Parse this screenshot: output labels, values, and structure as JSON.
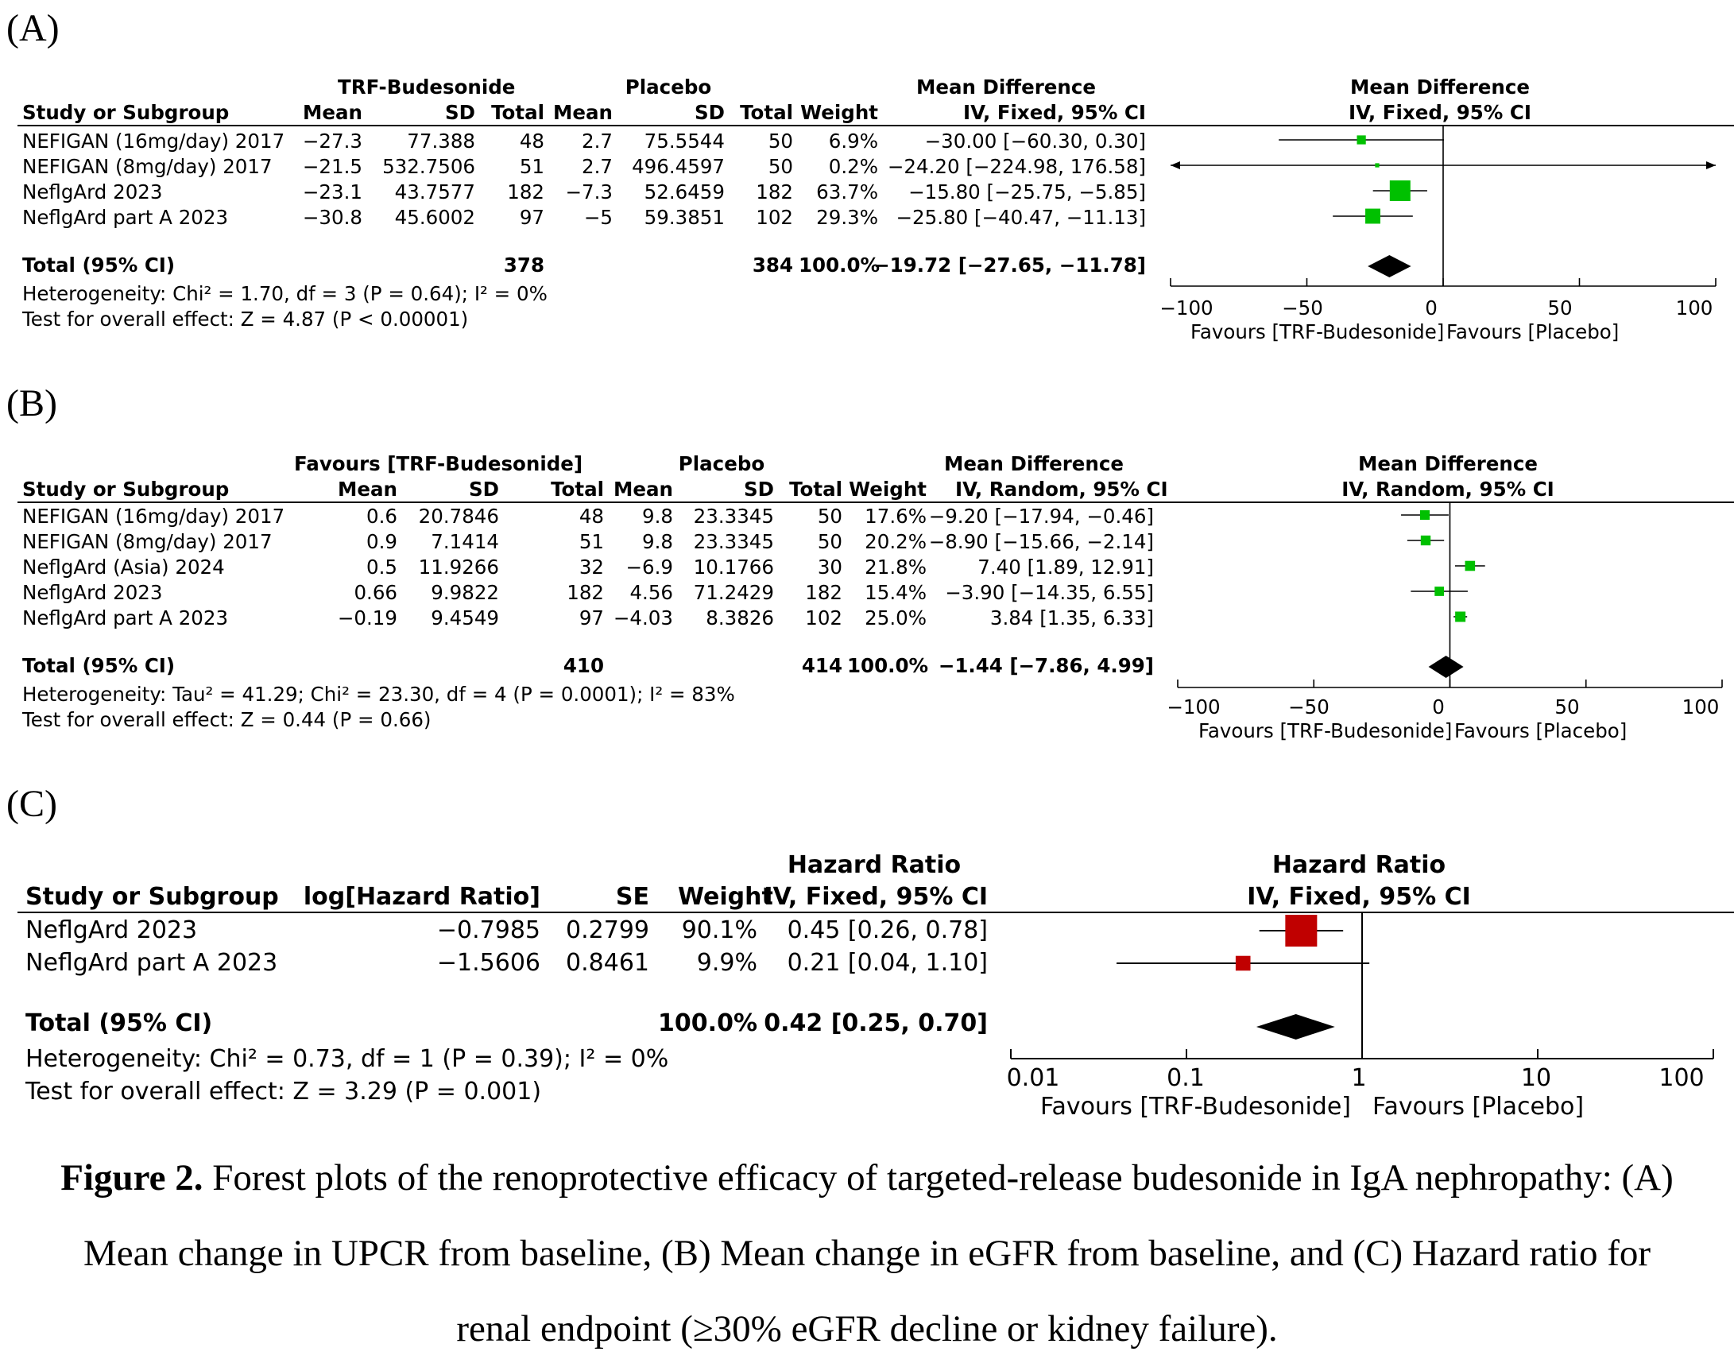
{
  "panels": [
    {
      "label": "(A)",
      "group1_label": "TRF-Budesonide",
      "group2_label": "Placebo",
      "effect_label": "Mean Difference",
      "method": "IV, Fixed, 95% CI",
      "columns": {
        "study": "Study or Subgroup",
        "mean1": "Mean",
        "sd1": "SD",
        "total1": "Total",
        "mean2": "Mean",
        "sd2": "SD",
        "total2": "Total",
        "weight": "Weight"
      },
      "studies": [
        {
          "name": "NEFIGAN (16mg/day) 2017",
          "mean1": "−27.3",
          "sd1": "77.388",
          "total1": "48",
          "mean2": "2.7",
          "sd2": "75.5544",
          "total2": "50",
          "weight": "6.9%",
          "ci": "−30.00 [−60.30, 0.30]"
        },
        {
          "name": "NEFIGAN (8mg/day) 2017",
          "mean1": "−21.5",
          "sd1": "532.7506",
          "total1": "51",
          "mean2": "2.7",
          "sd2": "496.4597",
          "total2": "50",
          "weight": "0.2%",
          "ci": "−24.20 [−224.98, 176.58]"
        },
        {
          "name": "NeflgArd 2023",
          "mean1": "−23.1",
          "sd1": "43.7577",
          "total1": "182",
          "mean2": "−7.3",
          "sd2": "52.6459",
          "total2": "182",
          "weight": "63.7%",
          "ci": "−15.80 [−25.75, −5.85]"
        },
        {
          "name": "NeflgArd part A 2023",
          "mean1": "−30.8",
          "sd1": "45.6002",
          "total1": "97",
          "mean2": "−5",
          "sd2": "59.3851",
          "total2": "102",
          "weight": "29.3%",
          "ci": "−25.80 [−40.47, −11.13]"
        }
      ],
      "total": {
        "name": "Total (95% CI)",
        "total1": "378",
        "total2": "384",
        "weight": "100.0%",
        "ci": "−19.72 [−27.65, −11.78]"
      },
      "heterogeneity": "Heterogeneity: Chi² = 1.70, df = 3 (P = 0.64); I² = 0%",
      "overall_effect": "Test for overall effect: Z = 4.87 (P < 0.00001)",
      "axis": {
        "ticks": [
          "−100",
          "−50",
          "0",
          "50",
          "100"
        ],
        "favours_left": "Favours [TRF-Budesonide]",
        "favours_right": "Favours [Placebo]"
      }
    },
    {
      "label": "(B)",
      "group1_label": "Favours [TRF-Budesonide]",
      "group2_label": "Placebo",
      "effect_label": "Mean Difference",
      "method": "IV, Random, 95% CI",
      "columns": {
        "study": "Study or Subgroup",
        "mean1": "Mean",
        "sd1": "SD",
        "total1": "Total",
        "mean2": "Mean",
        "sd2": "SD",
        "total2": "Total",
        "weight": "Weight"
      },
      "studies": [
        {
          "name": "NEFIGAN (16mg/day) 2017",
          "mean1": "0.6",
          "sd1": "20.7846",
          "total1": "48",
          "mean2": "9.8",
          "sd2": "23.3345",
          "total2": "50",
          "weight": "17.6%",
          "ci": "−9.20 [−17.94, −0.46]"
        },
        {
          "name": "NEFIGAN (8mg/day) 2017",
          "mean1": "0.9",
          "sd1": "7.1414",
          "total1": "51",
          "mean2": "9.8",
          "sd2": "23.3345",
          "total2": "50",
          "weight": "20.2%",
          "ci": "−8.90 [−15.66, −2.14]"
        },
        {
          "name": "NeflgArd (Asia) 2024",
          "mean1": "0.5",
          "sd1": "11.9266",
          "total1": "32",
          "mean2": "−6.9",
          "sd2": "10.1766",
          "total2": "30",
          "weight": "21.8%",
          "ci": "7.40 [1.89, 12.91]"
        },
        {
          "name": "NeflgArd 2023",
          "mean1": "0.66",
          "sd1": "9.9822",
          "total1": "182",
          "mean2": "4.56",
          "sd2": "71.2429",
          "total2": "182",
          "weight": "15.4%",
          "ci": "−3.90 [−14.35, 6.55]"
        },
        {
          "name": "NeflgArd part A 2023",
          "mean1": "−0.19",
          "sd1": "9.4549",
          "total1": "97",
          "mean2": "−4.03",
          "sd2": "8.3826",
          "total2": "102",
          "weight": "25.0%",
          "ci": "3.84 [1.35, 6.33]"
        }
      ],
      "total": {
        "name": "Total (95% CI)",
        "total1": "410",
        "total2": "414",
        "weight": "100.0%",
        "ci": "−1.44 [−7.86, 4.99]"
      },
      "heterogeneity": "Heterogeneity: Tau² = 41.29; Chi² = 23.30, df = 4 (P = 0.0001); I² = 83%",
      "overall_effect": "Test for overall effect: Z = 0.44 (P = 0.66)",
      "axis": {
        "ticks": [
          "−100",
          "−50",
          "0",
          "50",
          "100"
        ],
        "favours_left": "Favours [TRF-Budesonide]",
        "favours_right": "Favours [Placebo]"
      }
    },
    {
      "label": "(C)",
      "effect_label": "Hazard Ratio",
      "method": "IV, Fixed, 95% CI",
      "columns": {
        "study": "Study or Subgroup",
        "loghr": "log[Hazard Ratio]",
        "se": "SE",
        "weight": "Weight"
      },
      "studies": [
        {
          "name": "NeflgArd 2023",
          "loghr": "−0.7985",
          "se": "0.2799",
          "weight": "90.1%",
          "ci": "0.45 [0.26, 0.78]"
        },
        {
          "name": "NeflgArd part A 2023",
          "loghr": "−1.5606",
          "se": "0.8461",
          "weight": "9.9%",
          "ci": "0.21 [0.04, 1.10]"
        }
      ],
      "total": {
        "name": "Total (95% CI)",
        "weight": "100.0%",
        "ci": "0.42 [0.25, 0.70]"
      },
      "heterogeneity": "Heterogeneity: Chi² = 0.73, df = 1 (P = 0.39); I² = 0%",
      "overall_effect": "Test for overall effect: Z = 3.29 (P = 0.001)",
      "axis": {
        "ticks": [
          "0.01",
          "0.1",
          "1",
          "10",
          "100"
        ],
        "favours_left": "Favours [TRF-Budesonide]",
        "favours_right": "Favours [Placebo]"
      }
    }
  ],
  "caption": {
    "lead": "Figure 2.",
    "text": " Forest plots of the renoprotective efficacy of targeted-release budesonide in IgA nephropathy: (A) Mean change in UPCR from baseline, (B) Mean change in eGFR from baseline, and (C) Hazard ratio for renal endpoint (≥30% eGFR decline or kidney failure)."
  },
  "chart_data": [
    {
      "type": "forest",
      "scale": "linear",
      "xlim": [
        -100,
        100
      ],
      "null_value": 0,
      "marker_color": "#00c000",
      "series": [
        {
          "name": "NEFIGAN (16mg/day) 2017",
          "estimate": -30.0,
          "lower": -60.3,
          "upper": 0.3,
          "weight": 6.9
        },
        {
          "name": "NEFIGAN (8mg/day) 2017",
          "estimate": -24.2,
          "lower": -224.98,
          "upper": 176.58,
          "weight": 0.2
        },
        {
          "name": "NeflgArd 2023",
          "estimate": -15.8,
          "lower": -25.75,
          "upper": -5.85,
          "weight": 63.7
        },
        {
          "name": "NeflgArd part A 2023",
          "estimate": -25.8,
          "lower": -40.47,
          "upper": -11.13,
          "weight": 29.3
        }
      ],
      "pooled": {
        "estimate": -19.72,
        "lower": -27.65,
        "upper": -11.78
      }
    },
    {
      "type": "forest",
      "scale": "linear",
      "xlim": [
        -100,
        100
      ],
      "null_value": 0,
      "marker_color": "#00c000",
      "series": [
        {
          "name": "NEFIGAN (16mg/day) 2017",
          "estimate": -9.2,
          "lower": -17.94,
          "upper": -0.46,
          "weight": 17.6
        },
        {
          "name": "NEFIGAN (8mg/day) 2017",
          "estimate": -8.9,
          "lower": -15.66,
          "upper": -2.14,
          "weight": 20.2
        },
        {
          "name": "NeflgArd (Asia) 2024",
          "estimate": 7.4,
          "lower": 1.89,
          "upper": 12.91,
          "weight": 21.8
        },
        {
          "name": "NeflgArd 2023",
          "estimate": -3.9,
          "lower": -14.35,
          "upper": 6.55,
          "weight": 15.4
        },
        {
          "name": "NeflgArd part A 2023",
          "estimate": 3.84,
          "lower": 1.35,
          "upper": 6.33,
          "weight": 25.0
        }
      ],
      "pooled": {
        "estimate": -1.44,
        "lower": -7.86,
        "upper": 4.99
      }
    },
    {
      "type": "forest",
      "scale": "log",
      "xlim": [
        0.01,
        100
      ],
      "null_value": 1,
      "marker_color": "#c00000",
      "series": [
        {
          "name": "NeflgArd 2023",
          "estimate": 0.45,
          "lower": 0.26,
          "upper": 0.78,
          "weight": 90.1
        },
        {
          "name": "NeflgArd part A 2023",
          "estimate": 0.21,
          "lower": 0.04,
          "upper": 1.1,
          "weight": 9.9
        }
      ],
      "pooled": {
        "estimate": 0.42,
        "lower": 0.25,
        "upper": 0.7
      }
    }
  ]
}
